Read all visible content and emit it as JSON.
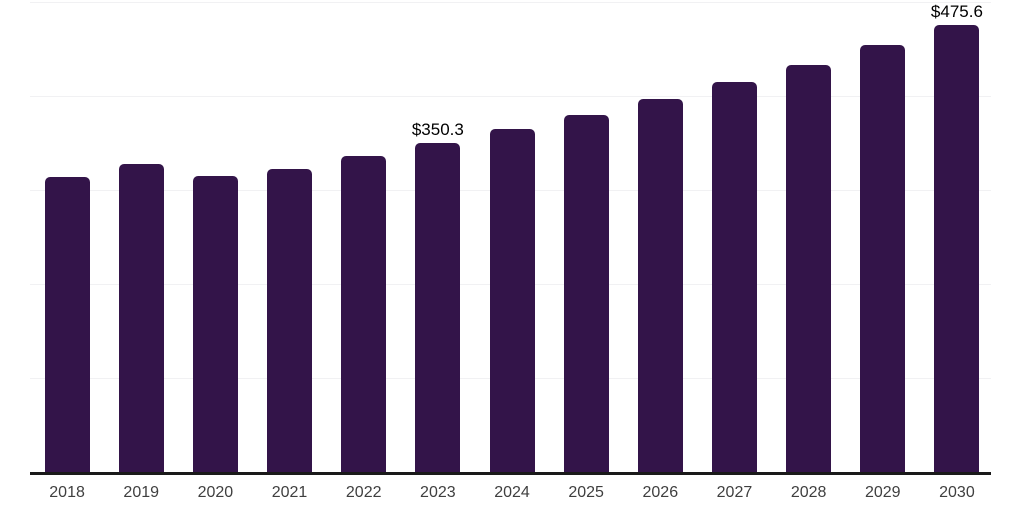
{
  "chart_data": {
    "type": "bar",
    "title": "",
    "xlabel": "",
    "ylabel": "",
    "categories": [
      "2018",
      "2019",
      "2020",
      "2021",
      "2022",
      "2023",
      "2024",
      "2025",
      "2026",
      "2027",
      "2028",
      "2029",
      "2030"
    ],
    "values": [
      313.4,
      327.6,
      314.5,
      322.2,
      336.7,
      350.3,
      365.2,
      380.3,
      397.0,
      415.0,
      433.0,
      454.2,
      475.6
    ],
    "data_labels": [
      {
        "category": "2023",
        "text": "$350.3"
      },
      {
        "category": "2030",
        "text": "$475.6"
      }
    ],
    "ylim": [
      0,
      500
    ],
    "grid_step": 100,
    "grid": "horizontal-only",
    "legend": "none",
    "y_tick_labels_visible": false,
    "bar_color": "#331449",
    "axis_color": "#1a1a1a",
    "grid_color": "#f1f1f3",
    "tick_label_color": "#3f3f3f",
    "data_label_color": "#000000"
  }
}
